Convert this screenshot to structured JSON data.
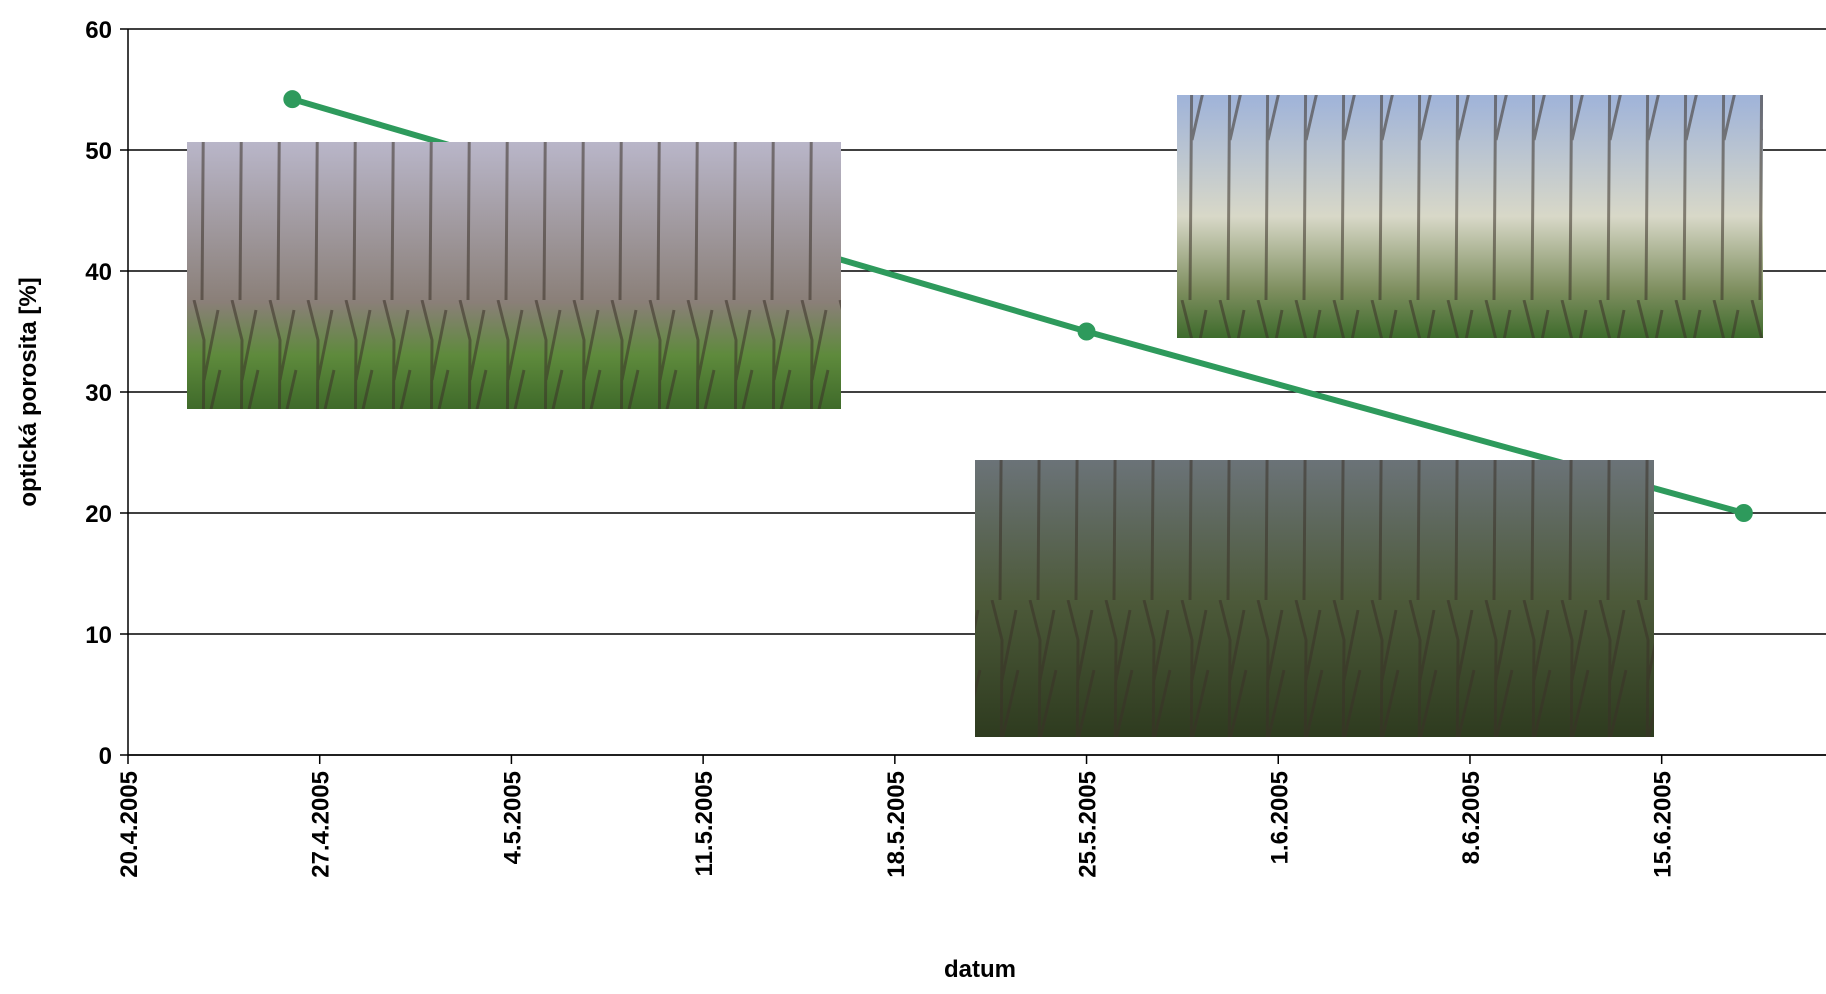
{
  "chart_data": {
    "type": "line",
    "x_label": "datum",
    "y_label": "optická porosita [%]",
    "x": [
      "26.4.2005",
      "25.5.2005",
      "18.6.2005"
    ],
    "series": [
      {
        "name": "optická porosita",
        "color": "#2e9a5c",
        "values": [
          54.2,
          35,
          20
        ]
      }
    ],
    "xlim": [
      "20.4.2005",
      "21.6.2005"
    ],
    "xticks": [
      "20.4.2005",
      "27.4.2005",
      "4.5.2005",
      "11.5.2005",
      "18.5.2005",
      "25.5.2005",
      "1.6.2005",
      "8.6.2005",
      "15.6.2005"
    ],
    "ylim": [
      0,
      60
    ],
    "yticks": [
      0,
      10,
      20,
      30,
      40,
      50,
      60
    ],
    "grid": true
  }
}
